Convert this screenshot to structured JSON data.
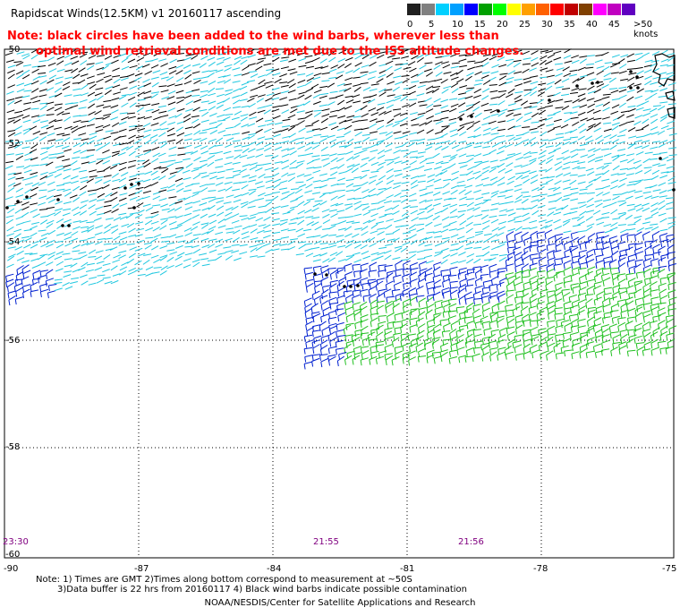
{
  "title": "Rapidscat Winds(12.5KM)  v1  20160117  ascending",
  "note": {
    "line1": "Note: black circles have been added to the wind barbs, wherever less than",
    "line2": "optimal wind retrieval conditions are met due to the ISS altitude changes."
  },
  "legend": {
    "colors": [
      "#202020",
      "#808080",
      "#00d0ff",
      "#00a0ff",
      "#0000ff",
      "#00a000",
      "#00ff00",
      "#ffff00",
      "#ffa000",
      "#ff6000",
      "#ff0000",
      "#c00000",
      "#804000",
      "#ff00ff",
      "#c000c0",
      "#6000c0"
    ],
    "labels": [
      "0",
      "5",
      "10",
      "15",
      "20",
      "25",
      "30",
      "35",
      "40",
      "45",
      ">50 knots"
    ]
  },
  "map": {
    "lon_ticks": [
      "-90",
      "-87",
      "-84",
      "-81",
      "-78",
      "-75"
    ],
    "lat_ticks": [
      "-50",
      "-52",
      "-54",
      "-56",
      "-58",
      "-60"
    ],
    "time_labels": [
      "23:30",
      "21:55",
      "21:56"
    ]
  },
  "footer": {
    "line1": "Note: 1) Times are GMT 2)Times along bottom correspond to measurement at ~50S",
    "line2": "3)Data buffer is 22 hrs from 20160117 4) Black wind barbs indicate possible contamination",
    "line3": "NOAA/NESDIS/Center for Satellite Applications and Research"
  },
  "colors": {
    "calm": "#000000",
    "cyan": "#20c8e0",
    "blue": "#0020d0",
    "green": "#20c020",
    "land": "#000000",
    "grid": "#000000",
    "note_text": "#ff0000",
    "time_text": "#800080"
  }
}
